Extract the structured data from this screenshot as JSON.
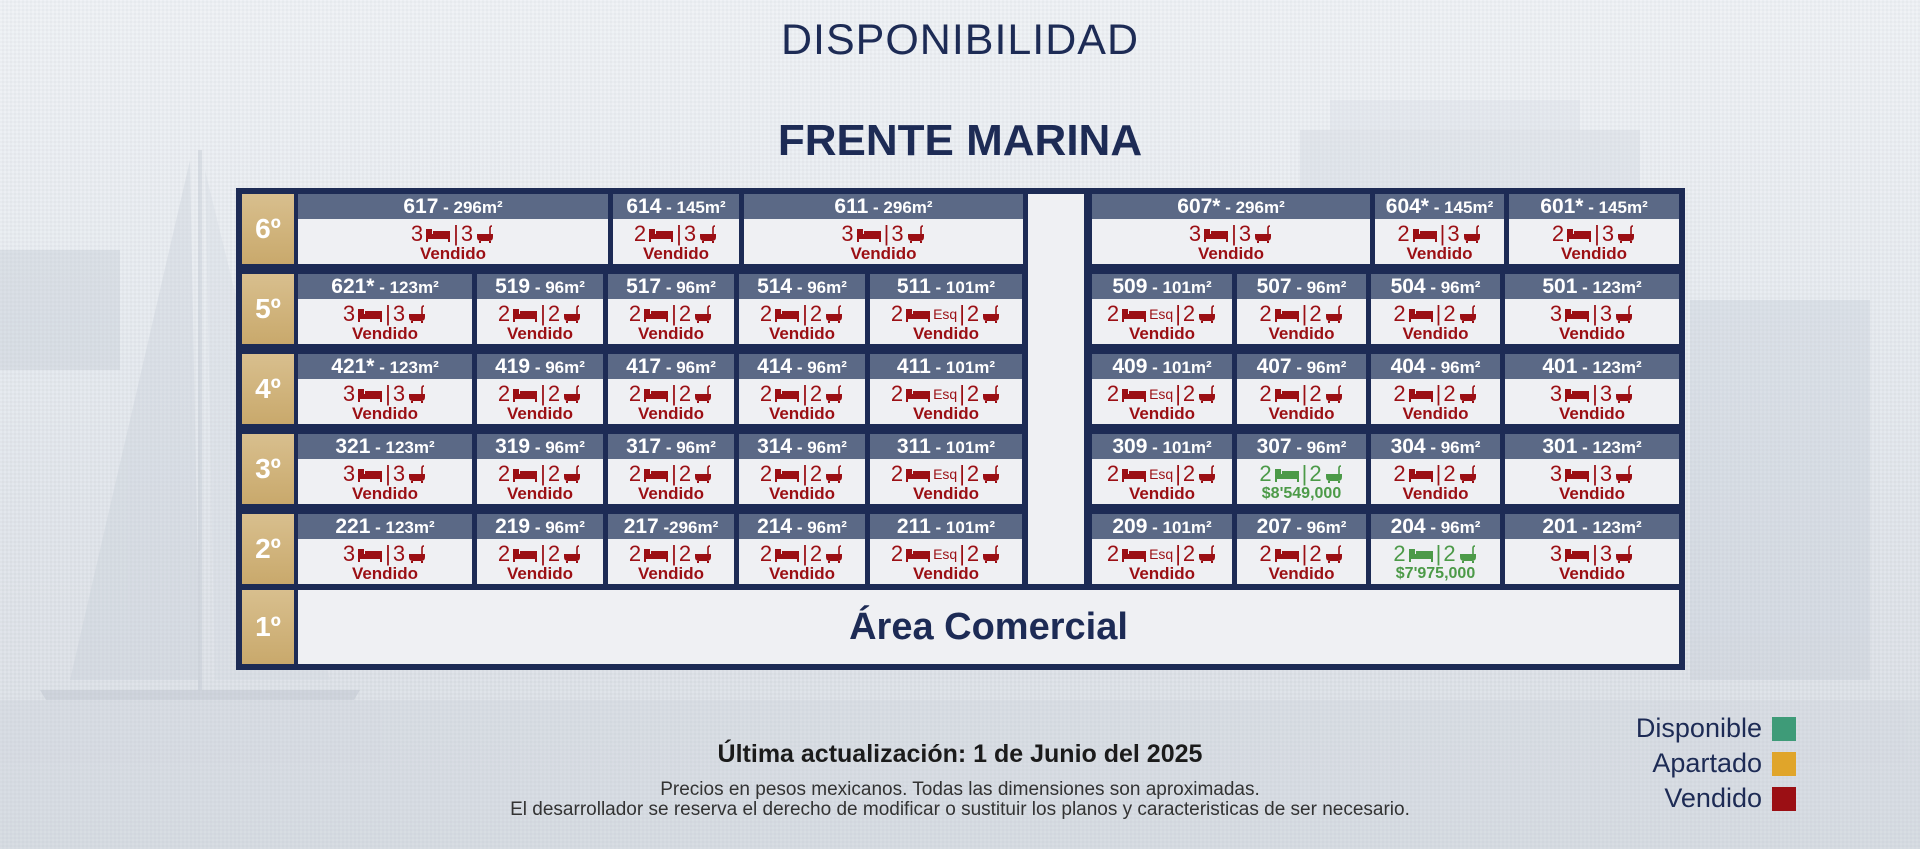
{
  "page": {
    "title": "DISPONIBILIDAD",
    "section": "FRENTE MARINA"
  },
  "colors": {
    "navy": "#1d2b55",
    "gold": "#c9a96c",
    "sold": "#9b0f14",
    "available": "#4c9a48",
    "header": "#5b6986"
  },
  "floors": [
    {
      "label": "6º",
      "units": [
        {
          "num": "617",
          "area": " - 296m²",
          "beds": "3",
          "bath": "3",
          "status": "Vendido"
        },
        {
          "num": "614",
          "area": " - 145m²",
          "beds": "2",
          "bath": "3",
          "status": "Vendido"
        },
        {
          "num": "611",
          "area": " - 296m²",
          "beds": "3",
          "bath": "3",
          "status": "Vendido"
        },
        {
          "num": "607*",
          "area": " - 296m²",
          "beds": "3",
          "bath": "3",
          "status": "Vendido"
        },
        {
          "num": "604*",
          "area": " - 145m²",
          "beds": "2",
          "bath": "3",
          "status": "Vendido"
        },
        {
          "num": "601*",
          "area": " - 145m²",
          "beds": "2",
          "bath": "3",
          "status": "Vendido"
        }
      ]
    },
    {
      "label": "5º",
      "units": [
        {
          "num": "621*",
          "area": " - 123m²",
          "beds": "3",
          "bath": "3",
          "status": "Vendido"
        },
        {
          "num": "519",
          "area": " - 96m²",
          "beds": "2",
          "bath": "2",
          "status": "Vendido"
        },
        {
          "num": "517",
          "area": " - 96m²",
          "beds": "2",
          "bath": "2",
          "status": "Vendido"
        },
        {
          "num": "514",
          "area": " - 96m²",
          "beds": "2",
          "bath": "2",
          "status": "Vendido"
        },
        {
          "num": "511",
          "area": " - 101m²",
          "beds": "2",
          "esq": "Esq",
          "bath": "2",
          "status": "Vendido"
        },
        {
          "num": "509",
          "area": " - 101m²",
          "beds": "2",
          "esq": "Esq",
          "bath": "2",
          "status": "Vendido"
        },
        {
          "num": "507",
          "area": " - 96m²",
          "beds": "2",
          "bath": "2",
          "status": "Vendido"
        },
        {
          "num": "504",
          "area": " - 96m²",
          "beds": "2",
          "bath": "2",
          "status": "Vendido"
        },
        {
          "num": "501",
          "area": " - 123m²",
          "beds": "3",
          "bath": "3",
          "status": "Vendido"
        }
      ]
    },
    {
      "label": "4º",
      "units": [
        {
          "num": "421*",
          "area": " - 123m²",
          "beds": "3",
          "bath": "3",
          "status": "Vendido"
        },
        {
          "num": "419",
          "area": " - 96m²",
          "beds": "2",
          "bath": "2",
          "status": "Vendido"
        },
        {
          "num": "417",
          "area": " - 96m²",
          "beds": "2",
          "bath": "2",
          "status": "Vendido"
        },
        {
          "num": "414",
          "area": " - 96m²",
          "beds": "2",
          "bath": "2",
          "status": "Vendido"
        },
        {
          "num": "411",
          "area": " - 101m²",
          "beds": "2",
          "esq": "Esq",
          "bath": "2",
          "status": "Vendido"
        },
        {
          "num": "409",
          "area": " - 101m²",
          "beds": "2",
          "esq": "Esq",
          "bath": "2",
          "status": "Vendido"
        },
        {
          "num": "407",
          "area": " - 96m²",
          "beds": "2",
          "bath": "2",
          "status": "Vendido"
        },
        {
          "num": "404",
          "area": " - 96m²",
          "beds": "2",
          "bath": "2",
          "status": "Vendido"
        },
        {
          "num": "401",
          "area": " - 123m²",
          "beds": "3",
          "bath": "3",
          "status": "Vendido"
        }
      ]
    },
    {
      "label": "3º",
      "units": [
        {
          "num": "321",
          "area": " - 123m²",
          "beds": "3",
          "bath": "3",
          "status": "Vendido"
        },
        {
          "num": "319",
          "area": " - 96m²",
          "beds": "2",
          "bath": "2",
          "status": "Vendido"
        },
        {
          "num": "317",
          "area": " - 96m²",
          "beds": "2",
          "bath": "2",
          "status": "Vendido"
        },
        {
          "num": "314",
          "area": " - 96m²",
          "beds": "2",
          "bath": "2",
          "status": "Vendido"
        },
        {
          "num": "311",
          "area": " - 101m²",
          "beds": "2",
          "esq": "Esq",
          "bath": "2",
          "status": "Vendido"
        },
        {
          "num": "309",
          "area": " - 101m²",
          "beds": "2",
          "esq": "Esq",
          "bath": "2",
          "status": "Vendido"
        },
        {
          "num": "307",
          "area": " - 96m²",
          "beds": "2",
          "bath": "2",
          "status": "$8'549,000",
          "available": true
        },
        {
          "num": "304",
          "area": " - 96m²",
          "beds": "2",
          "bath": "2",
          "status": "Vendido"
        },
        {
          "num": "301",
          "area": " - 123m²",
          "beds": "3",
          "bath": "3",
          "status": "Vendido"
        }
      ]
    },
    {
      "label": "2º",
      "units": [
        {
          "num": "221",
          "area": " - 123m²",
          "beds": "3",
          "bath": "3",
          "status": "Vendido"
        },
        {
          "num": "219",
          "area": " - 96m²",
          "beds": "2",
          "bath": "2",
          "status": "Vendido"
        },
        {
          "num": "217",
          "area": " -296m²",
          "beds": "2",
          "bath": "2",
          "status": "Vendido"
        },
        {
          "num": "214",
          "area": " - 96m²",
          "beds": "2",
          "bath": "2",
          "status": "Vendido"
        },
        {
          "num": "211",
          "area": " - 101m²",
          "beds": "2",
          "esq": "Esq",
          "bath": "2",
          "status": "Vendido"
        },
        {
          "num": "209",
          "area": " - 101m²",
          "beds": "2",
          "esq": "Esq",
          "bath": "2",
          "status": "Vendido"
        },
        {
          "num": "207",
          "area": " - 96m²",
          "beds": "2",
          "bath": "2",
          "status": "Vendido"
        },
        {
          "num": "204",
          "area": " - 96m²",
          "beds": "2",
          "bath": "2",
          "status": "$7'975,000",
          "available": true
        },
        {
          "num": "201",
          "area": " - 123m²",
          "beds": "3",
          "bath": "3",
          "status": "Vendido"
        }
      ]
    },
    {
      "label": "1º",
      "commercial": "Área Comercial"
    }
  ],
  "footer": {
    "update": "Última actualización: 1 de Junio del 2025",
    "line1": "Precios en pesos mexicanos. Todas las dimensiones son aproximadas.",
    "line2": "El desarrollador se reserva el derecho de modificar o sustituir los planos y caracteristicas de ser necesario."
  },
  "legend": [
    {
      "label": "Disponible",
      "color": "#3e9b78"
    },
    {
      "label": "Apartado",
      "color": "#e0a52a"
    },
    {
      "label": "Vendido",
      "color": "#9b0f14"
    }
  ]
}
